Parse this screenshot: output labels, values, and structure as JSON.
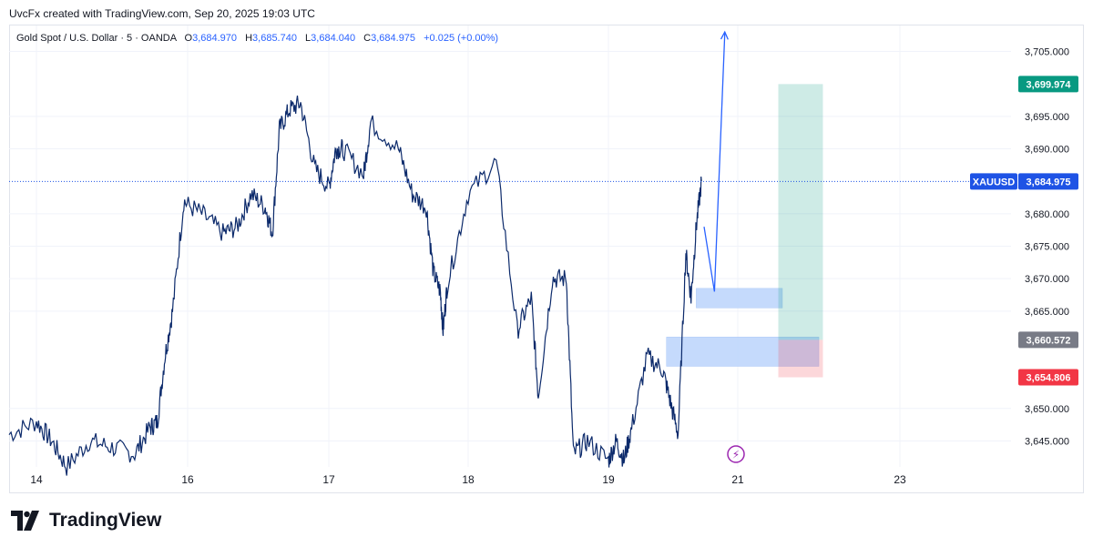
{
  "header": {
    "attribution": "UvcFx created with TradingView.com, Sep 20, 2025 19:03 UTC"
  },
  "legend": {
    "symbol": "Gold Spot / U.S. Dollar · 5 · OANDA",
    "open_label": "O",
    "open": "3,684.970",
    "high_label": "H",
    "high": "3,685.740",
    "low_label": "L",
    "low": "3,684.040",
    "close_label": "C",
    "close": "3,684.975",
    "change": "+0.025 (+0.00%)"
  },
  "price_axis": {
    "ticks": [
      {
        "value": 3705,
        "label": "3,705.000"
      },
      {
        "value": 3695,
        "label": "3,695.000"
      },
      {
        "value": 3690,
        "label": "3,690.000"
      },
      {
        "value": 3680,
        "label": "3,680.000"
      },
      {
        "value": 3675,
        "label": "3,675.000"
      },
      {
        "value": 3670,
        "label": "3,670.000"
      },
      {
        "value": 3665,
        "label": "3,665.000"
      },
      {
        "value": 3650,
        "label": "3,650.000"
      },
      {
        "value": 3645,
        "label": "3,645.000"
      }
    ],
    "tags": [
      {
        "name": "target-price-tag",
        "value": 3699.974,
        "label": "3,699.974",
        "color": "#089981"
      },
      {
        "name": "current-price-tag",
        "value": 3684.975,
        "label": "3,684.975",
        "symbol": "XAUUSD",
        "color": "#1e53e5"
      },
      {
        "name": "entry-price-tag",
        "value": 3660.572,
        "label": "3,660.572",
        "color": "#787b86"
      },
      {
        "name": "stop-price-tag",
        "value": 3654.806,
        "label": "3,654.806",
        "color": "#f23645"
      }
    ]
  },
  "time_axis": {
    "labels": [
      {
        "day": 14,
        "label": "14"
      },
      {
        "day": 16,
        "label": "16"
      },
      {
        "day": 17,
        "label": "17"
      },
      {
        "day": 18,
        "label": "18"
      },
      {
        "day": 19,
        "label": "19"
      },
      {
        "day": 21,
        "label": "21"
      },
      {
        "day": 23,
        "label": "23"
      }
    ]
  },
  "chart_data": {
    "type": "line",
    "symbol": "XAUUSD",
    "ylim": [
      3641,
      3709
    ],
    "series": [
      {
        "values_t": [
          13.9,
          14.0,
          14.2,
          14.4,
          14.7,
          15.0,
          15.3,
          15.5,
          15.6,
          15.7,
          15.8,
          15.95,
          16.1,
          16.25,
          16.35,
          16.45,
          16.55,
          16.6,
          16.65,
          16.72,
          16.8,
          16.9,
          17.0,
          17.05,
          17.1,
          17.25,
          17.3,
          17.5,
          17.6,
          17.7,
          17.75,
          17.8,
          17.82,
          17.85,
          18.0,
          18.2,
          18.35,
          18.45,
          18.5,
          18.6,
          18.7,
          18.75,
          18.85,
          19.0,
          19.1,
          19.2,
          19.3,
          19.5,
          19.7,
          19.8,
          19.9,
          20.0,
          20.1,
          20.2,
          20.3
        ],
        "values_y": [
          3646,
          3648,
          3645,
          3641,
          3645,
          3644,
          3643,
          3647,
          3648,
          3658,
          3665,
          3682,
          3680,
          3677,
          3678,
          3683,
          3681,
          3677,
          3693,
          3696,
          3697,
          3687,
          3684,
          3690,
          3690,
          3686,
          3694,
          3690,
          3683,
          3681,
          3671,
          3668,
          3662,
          3669,
          3683,
          3688,
          3662,
          3667,
          3652,
          3670,
          3670,
          3643,
          3645,
          3642,
          3645,
          3642,
          3647,
          3658,
          3656,
          3651,
          3646,
          3674,
          3667,
          3678,
          3685
        ]
      }
    ],
    "zones": [
      {
        "name": "demand-zone-upper",
        "day_from": 20.2,
        "day_to": 21.55,
        "y_from": 3665.5,
        "y_to": 3668.5
      },
      {
        "name": "demand-zone-lower",
        "day_from": 19.75,
        "day_to": 22.0,
        "y_from": 3656.5,
        "y_to": 3661
      }
    ],
    "position": {
      "day_from": 21.5,
      "day_to": 22.05,
      "target": 3699.974,
      "entry": 3660.572,
      "stop": 3654.806
    },
    "projection": [
      {
        "day": 20.35,
        "y": 3678
      },
      {
        "day": 20.55,
        "y": 3668
      },
      {
        "day": 20.75,
        "y": 3708
      }
    ]
  },
  "annotations": {
    "lightning": "⚡"
  },
  "branding": {
    "name": "TradingView"
  }
}
